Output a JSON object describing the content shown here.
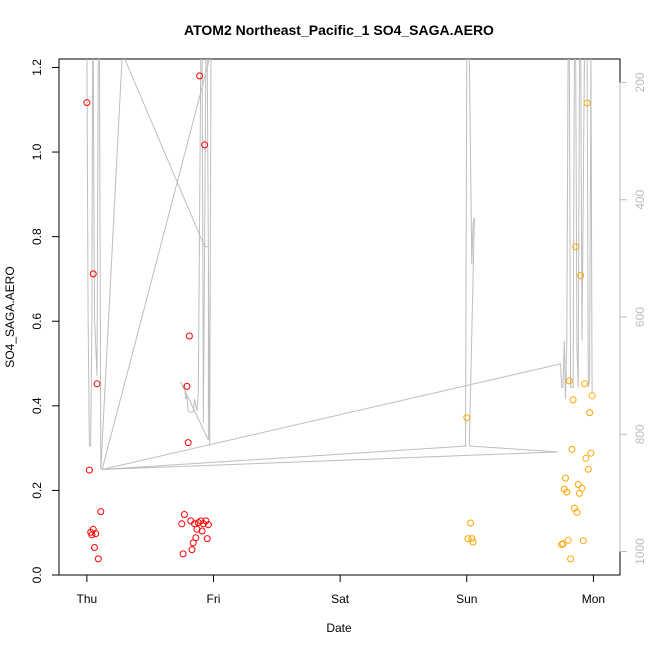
{
  "chart_data": {
    "type": "scatter",
    "title": "ATOM2 Northeast_Pacific_1 SO4_SAGA.AERO",
    "xlabel": "Date",
    "ylabel": "SO4_SAGA.AERO",
    "x_tick_labels": [
      "Thu",
      "Fri",
      "Sat",
      "Sun",
      "Mon"
    ],
    "xlim_days": [
      -0.22,
      4.21
    ],
    "ylim": [
      0,
      1.22
    ],
    "y_ticks": [
      0.0,
      0.2,
      0.4,
      0.6,
      0.8,
      1.0,
      1.2
    ],
    "y_tick_labels": [
      "0.0",
      "0.2",
      "0.4",
      "0.6",
      "0.8",
      "1.0",
      "1.2"
    ],
    "y2_ticks": [
      200,
      400,
      600,
      800,
      1000
    ],
    "y2_tick_labels": [
      "200",
      "400",
      "600",
      "800",
      "1000"
    ],
    "y2_lim_reversed": [
      1040,
      160
    ],
    "grid": false,
    "legend": "none",
    "colors": {
      "red": "#ff0000",
      "orange": "#ffa500",
      "pressure": "#bebebe"
    },
    "series": [
      {
        "color": "red",
        "points": [
          [
            0.0,
            1.117
          ],
          [
            0.02,
            0.248
          ],
          [
            0.03,
            0.101
          ],
          [
            0.04,
            0.095
          ],
          [
            0.05,
            0.712
          ],
          [
            0.05,
            0.108
          ],
          [
            0.06,
            0.065
          ],
          [
            0.07,
            0.098
          ],
          [
            0.08,
            0.452
          ],
          [
            0.09,
            0.038
          ],
          [
            0.11,
            0.15
          ],
          [
            0.75,
            0.121
          ],
          [
            0.76,
            0.05
          ],
          [
            0.77,
            0.143
          ],
          [
            0.79,
            0.446
          ],
          [
            0.8,
            0.313
          ],
          [
            0.81,
            0.565
          ],
          [
            0.82,
            0.128
          ],
          [
            0.83,
            0.06
          ],
          [
            0.84,
            0.076
          ],
          [
            0.85,
            0.121
          ],
          [
            0.86,
            0.088
          ],
          [
            0.87,
            0.108
          ],
          [
            0.88,
            0.124
          ],
          [
            0.89,
            1.18
          ],
          [
            0.9,
            0.128
          ],
          [
            0.91,
            0.104
          ],
          [
            0.92,
            0.121
          ],
          [
            0.93,
            1.017
          ],
          [
            0.94,
            0.128
          ],
          [
            0.95,
            0.086
          ],
          [
            0.96,
            0.119
          ]
        ]
      },
      {
        "color": "orange",
        "points": [
          [
            3.0,
            0.372
          ],
          [
            3.01,
            0.086
          ],
          [
            3.03,
            0.123
          ],
          [
            3.04,
            0.086
          ],
          [
            3.05,
            0.078
          ],
          [
            3.75,
            0.072
          ],
          [
            3.76,
            0.074
          ],
          [
            3.77,
            0.203
          ],
          [
            3.78,
            0.229
          ],
          [
            3.79,
            0.196
          ],
          [
            3.8,
            0.082
          ],
          [
            3.81,
            0.459
          ],
          [
            3.82,
            0.038
          ],
          [
            3.83,
            0.297
          ],
          [
            3.84,
            0.414
          ],
          [
            3.85,
            0.158
          ],
          [
            3.86,
            0.776
          ],
          [
            3.87,
            0.148
          ],
          [
            3.88,
            0.214
          ],
          [
            3.89,
            0.193
          ],
          [
            3.9,
            0.708
          ],
          [
            3.91,
            0.205
          ],
          [
            3.92,
            0.081
          ],
          [
            3.93,
            0.452
          ],
          [
            3.94,
            0.276
          ],
          [
            3.95,
            1.116
          ],
          [
            3.96,
            0.25
          ],
          [
            3.97,
            0.384
          ],
          [
            3.98,
            0.288
          ],
          [
            3.99,
            0.424
          ]
        ]
      }
    ],
    "pressure_line": {
      "y_axis": "right",
      "points": [
        [
          0.0,
          150
        ],
        [
          0.01,
          600
        ],
        [
          0.02,
          820
        ],
        [
          0.03,
          820
        ],
        [
          0.04,
          600
        ],
        [
          0.045,
          150
        ],
        [
          0.05,
          150
        ],
        [
          0.06,
          600
        ],
        [
          0.08,
          700
        ],
        [
          0.09,
          150
        ],
        [
          0.1,
          150
        ],
        [
          0.11,
          860
        ],
        [
          0.28,
          150
        ],
        [
          0.93,
          480
        ],
        [
          0.96,
          480
        ],
        [
          0.96,
          810
        ],
        [
          0.74,
          710
        ],
        [
          0.76,
          720
        ],
        [
          0.77,
          715
        ],
        [
          0.78,
          740
        ],
        [
          0.79,
          735
        ],
        [
          0.8,
          760
        ],
        [
          0.81,
          762
        ],
        [
          0.84,
          762
        ],
        [
          0.85,
          740
        ],
        [
          0.87,
          760
        ],
        [
          0.88,
          730
        ],
        [
          0.9,
          150
        ],
        [
          0.91,
          150
        ],
        [
          0.92,
          780
        ],
        [
          0.94,
          150
        ],
        [
          0.95,
          150
        ],
        [
          0.96,
          500
        ],
        [
          0.97,
          820
        ],
        [
          0.98,
          150
        ],
        [
          0.12,
          860
        ],
        [
          3.0,
          820
        ],
        [
          2.99,
          820
        ],
        [
          3.0,
          150
        ],
        [
          3.02,
          150
        ],
        [
          3.04,
          510
        ],
        [
          3.05,
          440
        ],
        [
          3.06,
          430
        ],
        [
          3.02,
          820
        ],
        [
          3.72,
          830
        ],
        [
          0.12,
          860
        ],
        [
          3.74,
          680
        ],
        [
          3.74,
          680
        ],
        [
          3.75,
          720
        ],
        [
          3.76,
          720
        ],
        [
          3.77,
          640
        ],
        [
          3.78,
          740
        ],
        [
          3.79,
          640
        ],
        [
          3.8,
          150
        ],
        [
          3.81,
          150
        ],
        [
          3.82,
          720
        ],
        [
          3.84,
          720
        ],
        [
          3.85,
          150
        ],
        [
          3.86,
          150
        ],
        [
          3.87,
          650
        ],
        [
          3.88,
          720
        ],
        [
          3.89,
          150
        ],
        [
          3.9,
          150
        ],
        [
          3.91,
          640
        ],
        [
          3.93,
          150
        ],
        [
          3.95,
          150
        ],
        [
          3.96,
          720
        ],
        [
          3.97,
          705
        ],
        [
          3.98,
          150
        ],
        [
          3.99,
          730
        ]
      ]
    }
  }
}
